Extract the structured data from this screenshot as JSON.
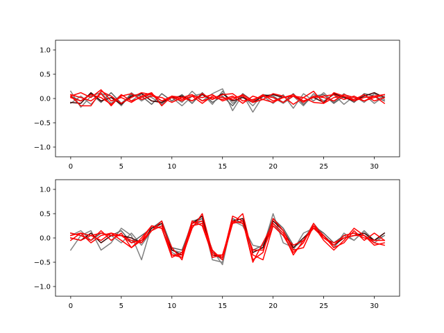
{
  "chart_data": [
    {
      "type": "line",
      "xlim": [
        -1.5,
        32.5
      ],
      "ylim": [
        -1.2,
        1.2
      ],
      "xticks": [
        0,
        5,
        10,
        15,
        20,
        25,
        30
      ],
      "xtick_labels": [
        "0",
        "5",
        "10",
        "15",
        "20",
        "25",
        "30"
      ],
      "yticks": [
        -1.0,
        -0.5,
        0.0,
        0.5,
        1.0
      ],
      "ytick_labels": [
        "−1.0",
        "−0.5",
        "0.0",
        "0.5",
        "1.0"
      ],
      "x": [
        0,
        1,
        2,
        3,
        4,
        5,
        6,
        7,
        8,
        9,
        10,
        11,
        12,
        13,
        14,
        15,
        16,
        17,
        18,
        19,
        20,
        21,
        22,
        23,
        24,
        25,
        26,
        27,
        28,
        29,
        30,
        31
      ],
      "series": [
        {
          "color": "#808080",
          "values": [
            0.15,
            -0.18,
            0.05,
            0.12,
            -0.1,
            0.08,
            -0.05,
            0.1,
            0.02,
            -0.12,
            0.05,
            -0.08,
            0.15,
            -0.05,
            0.1,
            0.2,
            -0.25,
            0.08,
            -0.28,
            0.05,
            -0.1,
            0.08,
            -0.2,
            0.1,
            -0.05,
            0.12,
            -0.08,
            0.1,
            -0.05,
            0.08,
            -0.1,
            0.05
          ]
        },
        {
          "color": "#808080",
          "values": [
            -0.1,
            0.05,
            -0.12,
            0.1,
            0.05,
            -0.15,
            0.12,
            -0.05,
            0.08,
            -0.1,
            0.02,
            -0.15,
            0.05,
            0.1,
            -0.12,
            0.15,
            -0.1,
            0.05,
            -0.15,
            0.08,
            0.02,
            -0.1,
            0.05,
            -0.15,
            0.1,
            -0.05,
            0.08,
            -0.12,
            0.05,
            -0.08,
            0.1,
            -0.02
          ]
        },
        {
          "color": "#606060",
          "values": [
            0.05,
            -0.05,
            0.1,
            -0.08,
            0.12,
            -0.1,
            0.08,
            0.05,
            -0.12,
            0.1,
            -0.05,
            0.08,
            -0.1,
            0.12,
            -0.08,
            0.05,
            -0.15,
            0.1,
            -0.05,
            0.08,
            0.05,
            -0.08,
            0.1,
            -0.12,
            0.05,
            0.08,
            -0.1,
            0.05,
            -0.08,
            0.1,
            0.05,
            -0.05
          ]
        },
        {
          "color": "#400000",
          "values": [
            -0.08,
            -0.1,
            0.12,
            -0.05,
            0.02,
            -0.12,
            0.05,
            0.1,
            -0.05,
            -0.08,
            0.02,
            0.05,
            -0.05,
            0.08,
            -0.02,
            0.1,
            -0.05,
            0.02,
            -0.08,
            0.05,
            0.08,
            0.02,
            0.05,
            -0.05,
            0.02,
            -0.08,
            0.1,
            0.02,
            -0.05,
            0.05,
            0.12,
            0.02
          ]
        },
        {
          "color": "#ff0000",
          "values": [
            0.05,
            0.12,
            0.02,
            0.18,
            -0.05,
            0.02,
            -0.08,
            0.05,
            0.12,
            -0.15,
            0.05,
            0.02,
            -0.05,
            0.1,
            -0.02,
            0.08,
            0.1,
            -0.05,
            -0.02,
            0.05,
            0.02,
            -0.08,
            0.05,
            0.02,
            0.15,
            -0.1,
            0.12,
            0.05,
            -0.02,
            0.08,
            -0.05,
            0.02
          ]
        },
        {
          "color": "#ff0000",
          "values": [
            0.02,
            -0.05,
            0.08,
            0.02,
            -0.12,
            0.05,
            0.1,
            -0.02,
            0.05,
            0.02,
            -0.08,
            0.02,
            0.08,
            -0.05,
            0.02,
            -0.02,
            0.05,
            -0.1,
            0.05,
            -0.02,
            -0.08,
            0.02,
            0.08,
            -0.05,
            0.02,
            0.05,
            0.08,
            -0.02,
            0.05,
            -0.05,
            0.02,
            0.08
          ]
        },
        {
          "color": "#ff0000",
          "values": [
            0.05,
            -0.15,
            -0.15,
            0.15,
            0.05,
            -0.1,
            0.02,
            0.12,
            0.08,
            -0.05,
            0.02,
            -0.05,
            0.05,
            0.02,
            0.08,
            -0.05,
            0.02,
            0.05,
            -0.08,
            -0.02,
            0.1,
            0.05,
            -0.12,
            0.02,
            -0.08,
            -0.1,
            0.02,
            0.05,
            -0.05,
            0.02,
            0.05,
            -0.1
          ]
        },
        {
          "color": "#ff0000",
          "values": [
            0.08,
            0.02,
            -0.05,
            0.1,
            -0.15,
            0.08,
            -0.05,
            0.02,
            0.1,
            -0.05,
            0.05,
            -0.02,
            0.05,
            -0.1,
            0.05,
            0.02,
            -0.02,
            0.08,
            -0.05,
            0.08,
            -0.05,
            0.02,
            0.05,
            -0.08,
            0.05,
            0.02,
            -0.05,
            0.08,
            0.02,
            -0.05,
            0.05,
            0.08
          ]
        }
      ]
    },
    {
      "type": "line",
      "xlim": [
        -1.5,
        32.5
      ],
      "ylim": [
        -1.2,
        1.2
      ],
      "xticks": [
        0,
        5,
        10,
        15,
        20,
        25,
        30
      ],
      "xtick_labels": [
        "0",
        "5",
        "10",
        "15",
        "20",
        "25",
        "30"
      ],
      "yticks": [
        -1.0,
        -0.5,
        0.0,
        0.5,
        1.0
      ],
      "ytick_labels": [
        "−1.0",
        "−0.5",
        "0.0",
        "0.5",
        "1.0"
      ],
      "x": [
        0,
        1,
        2,
        3,
        4,
        5,
        6,
        7,
        8,
        9,
        10,
        11,
        12,
        13,
        14,
        15,
        16,
        17,
        18,
        19,
        20,
        21,
        22,
        23,
        24,
        25,
        26,
        27,
        28,
        29,
        30,
        31
      ],
      "series": [
        {
          "color": "#808080",
          "values": [
            -0.25,
            0.05,
            0.15,
            -0.25,
            -0.1,
            0.2,
            0.05,
            -0.45,
            0.25,
            0.2,
            -0.3,
            -0.4,
            0.25,
            0.35,
            -0.25,
            -0.55,
            0.4,
            0.3,
            -0.3,
            -0.2,
            0.5,
            -0.1,
            -0.2,
            -0.05,
            0.3,
            0.05,
            -0.2,
            0.05,
            -0.05,
            0.15,
            -0.05,
            0.05
          ]
        },
        {
          "color": "#808080",
          "values": [
            0.05,
            0.15,
            -0.05,
            0.1,
            0.05,
            -0.1,
            0.1,
            -0.15,
            0.15,
            0.3,
            -0.25,
            -0.3,
            0.35,
            0.4,
            -0.45,
            -0.5,
            0.35,
            0.25,
            -0.15,
            -0.2,
            0.3,
            0.05,
            -0.25,
            0.1,
            0.2,
            0.05,
            -0.2,
            0.1,
            -0.05,
            0.15,
            -0.1,
            0.05
          ]
        },
        {
          "color": "#606060",
          "values": [
            0.1,
            0.05,
            -0.05,
            0.1,
            0.05,
            0.15,
            -0.1,
            0.05,
            0.2,
            0.35,
            -0.2,
            -0.25,
            0.3,
            0.4,
            -0.3,
            -0.45,
            0.4,
            0.3,
            -0.25,
            -0.15,
            0.4,
            0.2,
            -0.15,
            -0.05,
            0.25,
            0.1,
            -0.1,
            0.05,
            0.1,
            0.05,
            -0.05,
            0.1
          ]
        },
        {
          "color": "#400000",
          "values": [
            0.0,
            -0.05,
            0.1,
            -0.1,
            0.05,
            0.05,
            0.0,
            -0.1,
            0.2,
            0.3,
            -0.25,
            -0.35,
            0.3,
            0.45,
            -0.35,
            -0.4,
            0.35,
            0.4,
            -0.3,
            -0.2,
            0.35,
            0.15,
            -0.2,
            0.0,
            0.2,
            0.05,
            -0.15,
            0.0,
            0.05,
            0.1,
            -0.05,
            0.1
          ]
        },
        {
          "color": "#ff0000",
          "values": [
            0.1,
            0.05,
            -0.05,
            0.15,
            -0.05,
            0.1,
            -0.2,
            -0.05,
            0.25,
            0.2,
            -0.35,
            -0.4,
            0.2,
            0.5,
            -0.3,
            -0.4,
            0.45,
            0.35,
            -0.5,
            -0.1,
            0.3,
            0.1,
            -0.35,
            -0.05,
            0.25,
            -0.05,
            -0.25,
            -0.05,
            0.2,
            0.05,
            -0.15,
            -0.1
          ]
        },
        {
          "color": "#ff0000",
          "values": [
            0.05,
            0.1,
            0.05,
            -0.05,
            0.1,
            0.05,
            -0.05,
            -0.1,
            0.15,
            0.25,
            -0.2,
            -0.45,
            0.3,
            0.35,
            -0.4,
            -0.35,
            0.3,
            0.5,
            -0.35,
            -0.45,
            0.25,
            0.05,
            -0.3,
            -0.1,
            0.3,
            0.0,
            -0.15,
            0.05,
            0.1,
            0.0,
            -0.05,
            -0.05
          ]
        },
        {
          "color": "#ff0000",
          "values": [
            -0.05,
            0.1,
            -0.1,
            0.05,
            0.1,
            -0.05,
            -0.2,
            0.0,
            0.25,
            0.2,
            -0.4,
            -0.3,
            0.25,
            0.3,
            -0.25,
            -0.45,
            0.3,
            0.35,
            -0.45,
            -0.3,
            0.4,
            0.15,
            -0.25,
            -0.2,
            0.25,
            0.05,
            -0.2,
            -0.1,
            0.15,
            -0.05,
            0.1,
            -0.05
          ]
        },
        {
          "color": "#ff0000",
          "values": [
            0.0,
            -0.05,
            0.05,
            0.1,
            0.05,
            0.05,
            -0.1,
            -0.05,
            0.15,
            0.35,
            -0.35,
            -0.35,
            0.35,
            0.25,
            -0.35,
            -0.35,
            0.35,
            0.3,
            -0.25,
            -0.25,
            0.25,
            0.05,
            -0.15,
            -0.05,
            0.2,
            0.0,
            -0.1,
            0.0,
            0.05,
            0.05,
            -0.1,
            -0.15
          ]
        }
      ]
    }
  ]
}
